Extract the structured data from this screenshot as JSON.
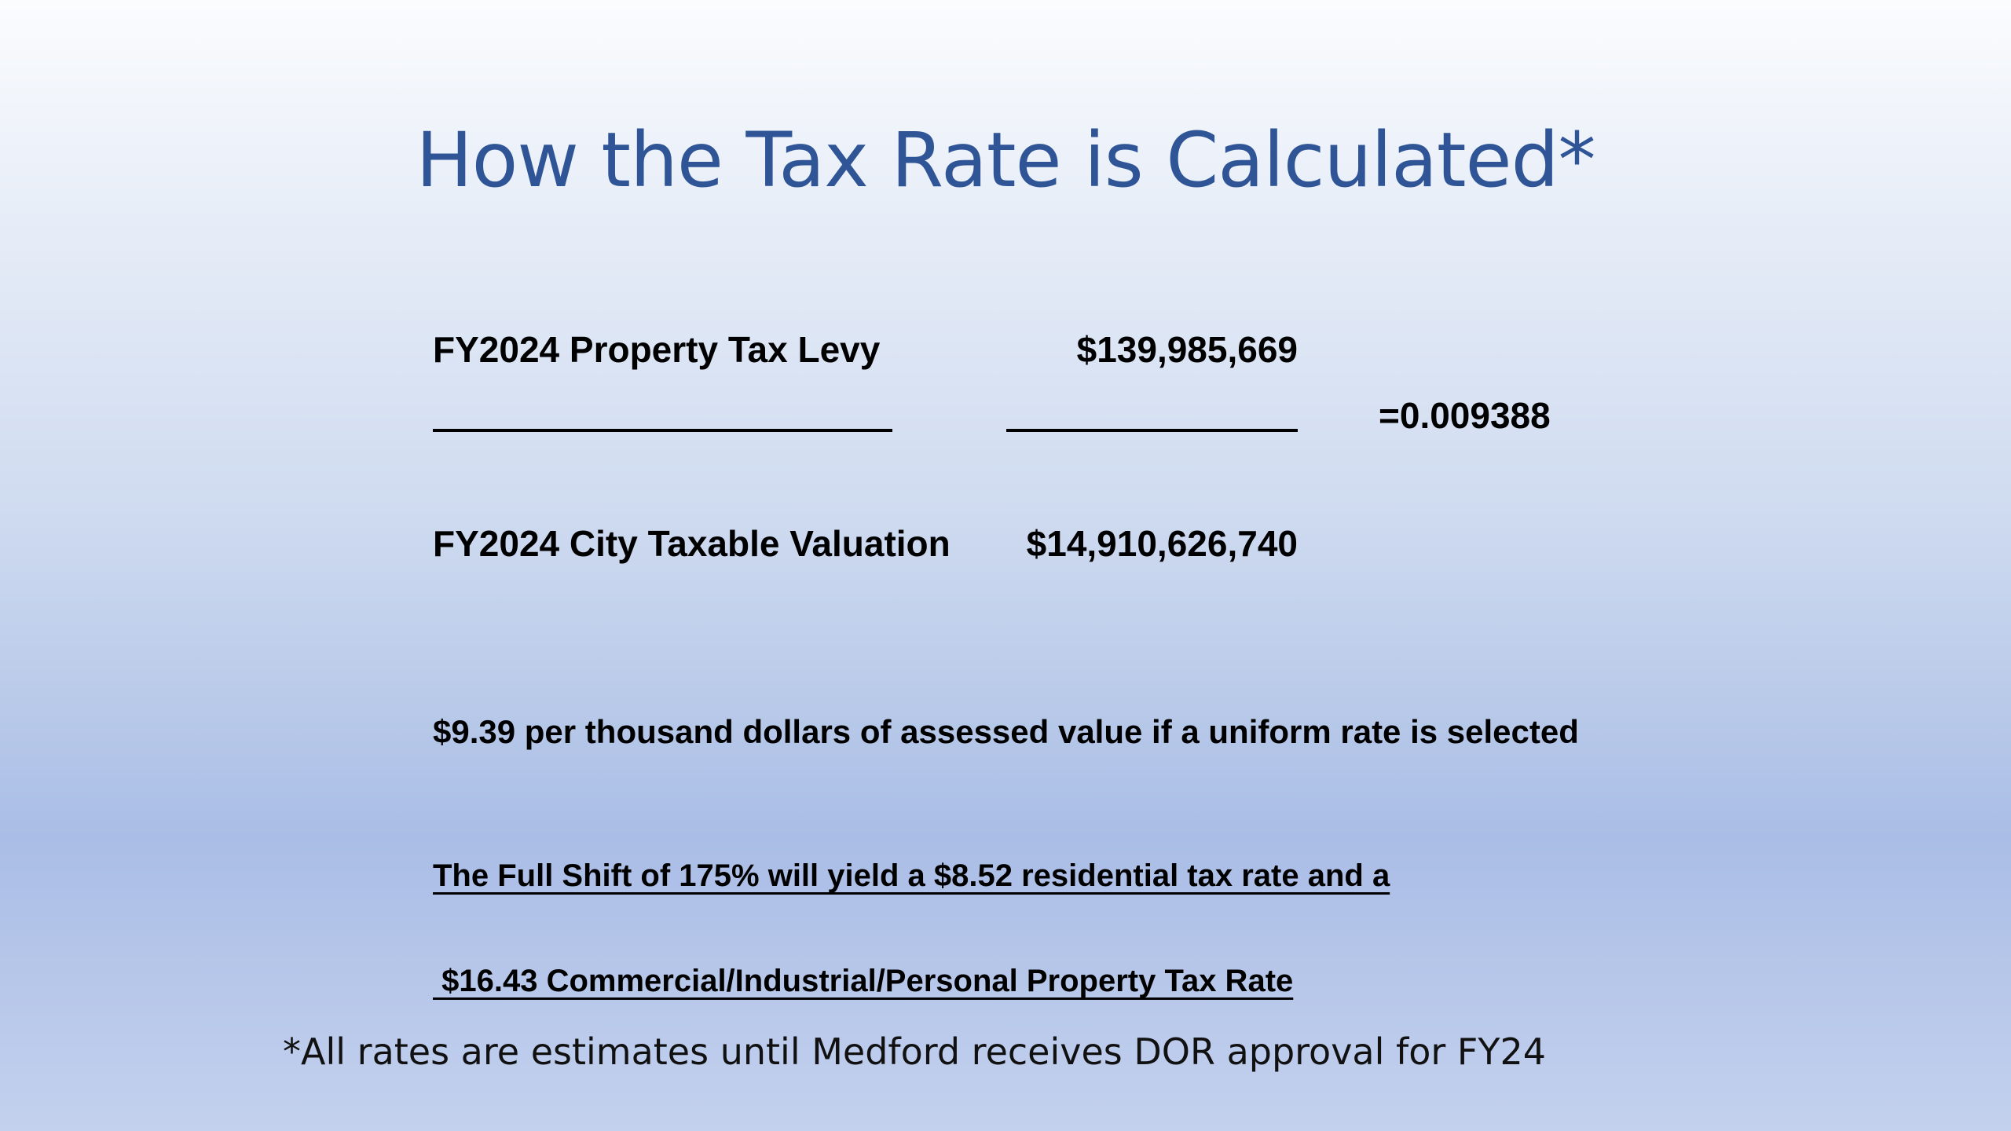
{
  "slide": {
    "title": "How the Tax Rate is Calculated*",
    "numerator": {
      "label": "FY2024 Property Tax Levy",
      "value": "$139,985,669"
    },
    "result": "=0.009388",
    "denominator": {
      "label": "FY2024 City Taxable Valuation",
      "value": "$14,910,626,740"
    },
    "uniform_rate_statement": "$9.39 per thousand dollars of assessed value if a uniform rate is selected",
    "full_shift_line1": "The Full Shift of 175% will yield a $8.52 residential tax rate and a",
    "full_shift_line2": " $16.43 Commercial/Industrial/Personal Property Tax Rate",
    "footnote": "*All rates are estimates until Medford receives DOR approval for FY24"
  }
}
